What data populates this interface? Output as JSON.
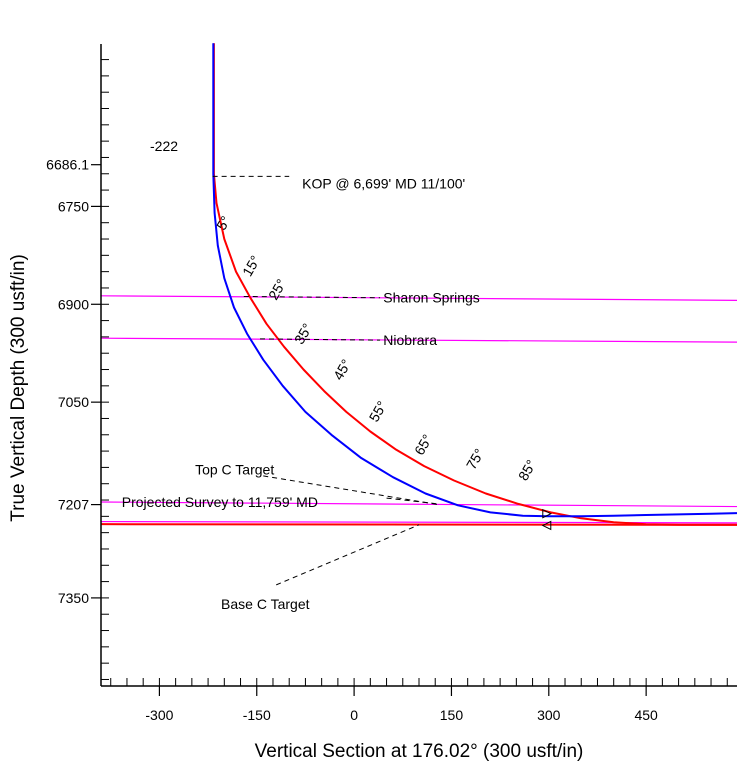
{
  "chart_data": {
    "type": "line",
    "xlabel": "Vertical Section at 176.02° (300 usft/in)",
    "ylabel": "True Vertical Depth (300 usft/in)",
    "x_ticks": [
      -300,
      -150,
      0,
      150,
      300,
      450
    ],
    "y_ticks": [
      "6686.1",
      "6750",
      "6900",
      "7050",
      "7207",
      "7350"
    ],
    "xlim": [
      -390,
      590
    ],
    "ylim": [
      6495,
      7485
    ],
    "y_inverted": true,
    "grid": false,
    "corner_label": "-222",
    "formations": [
      {
        "name": "Sharon Springs",
        "color": "#ff00ff",
        "points": [
          [
            -390,
            6887
          ],
          [
            590,
            6894
          ]
        ],
        "label_at": [
          45,
          6890
        ]
      },
      {
        "name": "Niobrara",
        "color": "#ff00ff",
        "points": [
          [
            -390,
            6952
          ],
          [
            590,
            6958
          ]
        ],
        "label_at": [
          45,
          6955
        ]
      },
      {
        "name": "Top C Target",
        "color": "#ff00ff",
        "points": [
          [
            -390,
            7203
          ],
          [
            590,
            7210
          ]
        ],
        "label_at": [
          -245,
          7153
        ]
      },
      {
        "name": "Base C Target",
        "color": "#ff00ff",
        "points": [
          [
            -390,
            7233
          ],
          [
            590,
            7235
          ]
        ],
        "label_at": [
          -205,
          7359
        ]
      }
    ],
    "target_line": {
      "color": "#ff0000",
      "points": [
        [
          -390,
          7237
        ],
        [
          590,
          7238
        ]
      ]
    },
    "series": [
      {
        "color": "#ff0000",
        "x": [
          -216,
          -216,
          -212,
          -200,
          -182,
          -160,
          -135,
          -108,
          -78,
          -46,
          -12,
          25,
          65,
          108,
          154,
          203,
          253,
          303,
          350,
          400,
          450,
          500,
          550,
          590
        ],
        "y": [
          6500,
          6700,
          6745,
          6800,
          6850,
          6890,
          6930,
          6965,
          7000,
          7033,
          7065,
          7095,
          7123,
          7148,
          7170,
          7190,
          7206,
          7219,
          7228,
          7234,
          7237,
          7238,
          7238,
          7238
        ]
      },
      {
        "color": "#0000ff",
        "x": [
          -217,
          -217,
          -215,
          -210,
          -200,
          -185,
          -165,
          -140,
          -110,
          -75,
          -35,
          10,
          60,
          110,
          160,
          210,
          260,
          300,
          350,
          400,
          450,
          500,
          550,
          590
        ],
        "y": [
          6500,
          6700,
          6760,
          6810,
          6860,
          6905,
          6945,
          6985,
          7025,
          7065,
          7100,
          7135,
          7165,
          7190,
          7208,
          7219,
          7224,
          7225,
          7225,
          7224,
          7223,
          7222,
          7221,
          7220
        ]
      }
    ],
    "inclination_labels": [
      {
        "text": "5°",
        "x": -200,
        "y": 6788
      },
      {
        "text": "15°",
        "x": -160,
        "y": 6859
      },
      {
        "text": "25°",
        "x": -120,
        "y": 6895
      },
      {
        "text": "35°",
        "x": -80,
        "y": 6963
      },
      {
        "text": "45°",
        "x": -20,
        "y": 7018
      },
      {
        "text": "55°",
        "x": 35,
        "y": 7082
      },
      {
        "text": "65°",
        "x": 105,
        "y": 7133
      },
      {
        "text": "75°",
        "x": 185,
        "y": 7155
      },
      {
        "text": "85°",
        "x": 265,
        "y": 7172
      }
    ],
    "annotations": [
      {
        "text": "KOP @ 6,699' MD  11/100'",
        "label_at": [
          -80,
          6715
        ],
        "line_from": [
          -218,
          6704
        ],
        "line_to": [
          -100,
          6704
        ]
      },
      {
        "text": "Projected Survey to 11,759' MD",
        "label_at": [
          -358,
          7203
        ],
        "line_from": [
          50,
          7197
        ],
        "line_to": [
          130,
          7206
        ]
      }
    ]
  }
}
